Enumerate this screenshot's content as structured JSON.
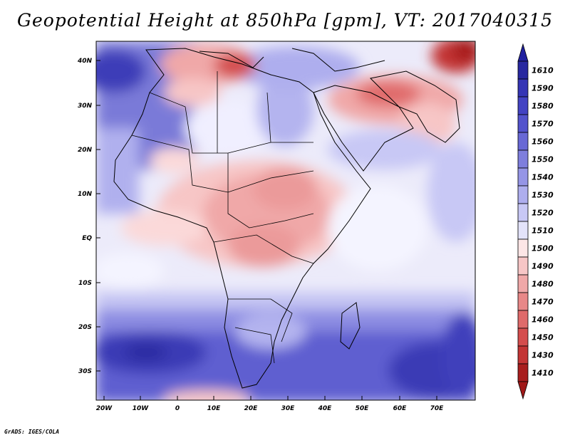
{
  "title": "Geopotential Height at 850hPa [gpm], VT: 2017040315",
  "credit": "GrADS: IGES/COLA",
  "map": {
    "region": "Africa and Middle East",
    "lon_range": [
      -25,
      80
    ],
    "lat_range": [
      -37,
      46
    ],
    "lat_ticks": [
      "40N",
      "30N",
      "20N",
      "10N",
      "EQ",
      "10S",
      "20S",
      "30S"
    ],
    "lon_ticks": [
      "20W",
      "10W",
      "0",
      "10E",
      "20E",
      "30E",
      "40E",
      "50E",
      "60E",
      "70E"
    ]
  },
  "colorbar": {
    "labels": [
      "1610",
      "1590",
      "1580",
      "1570",
      "1560",
      "1550",
      "1540",
      "1530",
      "1520",
      "1510",
      "1500",
      "1490",
      "1480",
      "1470",
      "1460",
      "1450",
      "1430",
      "1410"
    ],
    "colors": [
      "#2828a0",
      "#3535b5",
      "#4343c3",
      "#5353cc",
      "#6868d5",
      "#7e7edd",
      "#9595e6",
      "#aeaeee",
      "#c8c8f5",
      "#e3e3fa",
      "#fde6e6",
      "#f7c6c6",
      "#f0a8a8",
      "#e88888",
      "#df6a6a",
      "#d44d4d",
      "#c33535",
      "#a81e1e"
    ],
    "top_triangle_color": "#2020a0",
    "bottom_triangle_color": "#a01818"
  }
}
